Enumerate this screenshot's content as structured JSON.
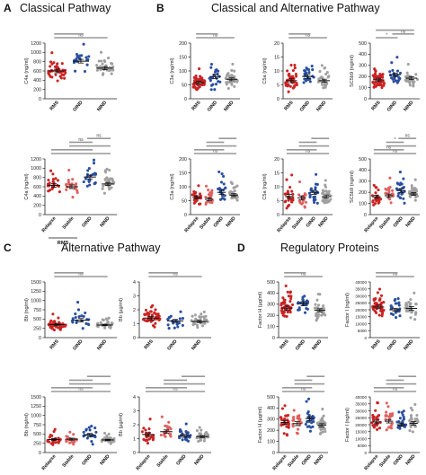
{
  "panels": {
    "A": {
      "letter": "A",
      "title": "Classical Pathway"
    },
    "B": {
      "letter": "B",
      "title": "Classical and Alternative Pathway"
    },
    "C": {
      "letter": "C",
      "title": "Alternative Pathway"
    },
    "D": {
      "letter": "D",
      "title": "Regulatory Proteins"
    }
  },
  "colors": {
    "rms": "#cc2222",
    "stable": "#e06060",
    "oind": "#2a4fa0",
    "nind": "#a0a0a0",
    "bar": "#999999",
    "axis": "#222222"
  },
  "chart_data": [
    {
      "id": "A1",
      "type": "scatter",
      "ylabel": "C4a (ng/ml)",
      "ticks": [
        0,
        200,
        400,
        600,
        800,
        1000,
        1200
      ],
      "ylim": [
        0,
        1200
      ],
      "categories": [
        "RMS",
        "OIND",
        "NIND"
      ],
      "means": [
        600,
        810,
        660
      ],
      "n": [
        45,
        22,
        32
      ],
      "spread": [
        220,
        220,
        180
      ],
      "brackets": [
        {
          "from": 0,
          "to": 2,
          "label": "ns"
        },
        {
          "from": 0,
          "to": 1,
          "label": ""
        }
      ]
    },
    {
      "id": "A2",
      "type": "scatter",
      "ylabel": "C4a (ng/ml)",
      "ticks": [
        0,
        200,
        400,
        600,
        800,
        1000,
        1200
      ],
      "ylim": [
        0,
        1200
      ],
      "categories": [
        "Relapse",
        "Stable",
        "OIND",
        "NIND"
      ],
      "means": [
        630,
        600,
        810,
        660
      ],
      "n": [
        24,
        20,
        22,
        32
      ],
      "spread": [
        220,
        220,
        220,
        180
      ],
      "brackets": [
        {
          "from": 0,
          "to": 3,
          "label": ""
        },
        {
          "from": 0,
          "to": 2,
          "label": ""
        },
        {
          "from": 1,
          "to": 3,
          "label": ""
        },
        {
          "from": 1,
          "to": 2,
          "label": "ns"
        },
        {
          "from": 2,
          "to": 3,
          "label": "ns"
        }
      ],
      "group_label": "RMS"
    },
    {
      "id": "B1",
      "type": "scatter",
      "ylabel": "C3a (ng/ml)",
      "ticks": [
        0,
        50,
        100,
        150,
        200
      ],
      "ylim": [
        0,
        200
      ],
      "categories": [
        "RMS",
        "OIND",
        "NIND"
      ],
      "means": [
        58,
        80,
        70
      ],
      "n": [
        45,
        22,
        32
      ],
      "spread": [
        30,
        40,
        28
      ],
      "brackets": [
        {
          "from": 0,
          "to": 2,
          "label": "ns"
        },
        {
          "from": 0,
          "to": 1,
          "label": ""
        }
      ]
    },
    {
      "id": "B2",
      "type": "scatter",
      "ylabel": "C5a (ng/ml)",
      "ticks": [
        0,
        5,
        10,
        15,
        20
      ],
      "ylim": [
        0,
        20
      ],
      "categories": [
        "RMS",
        "OIND",
        "NIND"
      ],
      "means": [
        6.5,
        8,
        6.5
      ],
      "n": [
        45,
        22,
        32
      ],
      "spread": [
        4,
        4,
        3
      ],
      "brackets": [
        {
          "from": 0,
          "to": 2,
          "label": "ns"
        },
        {
          "from": 0,
          "to": 1,
          "label": ""
        }
      ]
    },
    {
      "id": "B3",
      "type": "scatter",
      "ylabel": "SC5b9 (ng/ml)",
      "ticks": [
        0,
        100,
        200,
        300,
        400,
        500
      ],
      "ylim": [
        0,
        500
      ],
      "categories": [
        "RMS",
        "OIND",
        "NIND"
      ],
      "means": [
        170,
        215,
        185
      ],
      "n": [
        45,
        22,
        32
      ],
      "spread": [
        80,
        90,
        70
      ],
      "brackets": [
        {
          "from": 0,
          "to": 1,
          "label": "*"
        },
        {
          "from": 1,
          "to": 2,
          "label": "ns"
        },
        {
          "from": 0,
          "to": 2,
          "label": ""
        }
      ]
    },
    {
      "id": "B4",
      "type": "scatter",
      "ylabel": "C3a (ng/ml)",
      "ticks": [
        0,
        50,
        100,
        150,
        200
      ],
      "ylim": [
        0,
        200
      ],
      "categories": [
        "Relapse",
        "Stable",
        "OIND",
        "NIND"
      ],
      "means": [
        62,
        55,
        80,
        70
      ],
      "n": [
        24,
        20,
        22,
        32
      ],
      "spread": [
        30,
        30,
        40,
        28
      ],
      "brackets": [
        {
          "from": 0,
          "to": 3,
          "label": "ns"
        },
        {
          "from": 0,
          "to": 2,
          "label": ""
        },
        {
          "from": 1,
          "to": 3,
          "label": ""
        },
        {
          "from": 1,
          "to": 2,
          "label": ""
        },
        {
          "from": 2,
          "to": 3,
          "label": ""
        }
      ]
    },
    {
      "id": "B5",
      "type": "scatter",
      "ylabel": "C5a (ng/ml)",
      "ticks": [
        0,
        5,
        10,
        15,
        20
      ],
      "ylim": [
        0,
        20
      ],
      "categories": [
        "Relapse",
        "Stable",
        "OIND",
        "NIND"
      ],
      "means": [
        6.5,
        6,
        8,
        6.5
      ],
      "n": [
        24,
        20,
        22,
        32
      ],
      "spread": [
        4,
        4,
        4,
        3
      ],
      "brackets": [
        {
          "from": 0,
          "to": 3,
          "label": "ns"
        },
        {
          "from": 0,
          "to": 2,
          "label": ""
        },
        {
          "from": 1,
          "to": 3,
          "label": ""
        },
        {
          "from": 1,
          "to": 2,
          "label": ""
        },
        {
          "from": 2,
          "to": 3,
          "label": ""
        }
      ]
    },
    {
      "id": "B6",
      "type": "scatter",
      "ylabel": "SC5b9 (ng/ml)",
      "ticks": [
        0,
        100,
        200,
        300,
        400,
        500
      ],
      "ylim": [
        0,
        500
      ],
      "categories": [
        "Relapse",
        "Stable",
        "OIND",
        "NIND"
      ],
      "means": [
        160,
        170,
        215,
        185
      ],
      "n": [
        24,
        20,
        22,
        32
      ],
      "spread": [
        80,
        80,
        90,
        70
      ],
      "brackets": [
        {
          "from": 0,
          "to": 3,
          "label": "ns"
        },
        {
          "from": 0,
          "to": 2,
          "label": "ns"
        },
        {
          "from": 1,
          "to": 3,
          "label": ""
        },
        {
          "from": 1,
          "to": 2,
          "label": "*"
        },
        {
          "from": 2,
          "to": 3,
          "label": "ns"
        }
      ]
    },
    {
      "id": "C1",
      "type": "scatter",
      "ylabel": "Bb (ng/ml)",
      "ticks": [
        0,
        250,
        500,
        750,
        1000,
        1250,
        1500
      ],
      "ylim": [
        0,
        1500
      ],
      "categories": [
        "RMS",
        "OIND",
        "NIND"
      ],
      "means": [
        350,
        470,
        340
      ],
      "n": [
        45,
        22,
        32
      ],
      "spread": [
        150,
        250,
        100
      ],
      "brackets": [
        {
          "from": 0,
          "to": 2,
          "label": "ns"
        },
        {
          "from": 0,
          "to": 1,
          "label": ""
        }
      ]
    },
    {
      "id": "C2",
      "type": "scatter",
      "ylabel": "Bb (µg/ml)",
      "ticks": [
        0,
        1,
        2,
        3,
        4
      ],
      "ylim": [
        0,
        4
      ],
      "categories": [
        "RMS",
        "OIND",
        "NIND"
      ],
      "means": [
        1.4,
        1.2,
        1.15
      ],
      "n": [
        45,
        22,
        32
      ],
      "spread": [
        0.7,
        0.6,
        0.4
      ],
      "brackets": [
        {
          "from": 0,
          "to": 2,
          "label": "ns"
        },
        {
          "from": 0,
          "to": 1,
          "label": ""
        }
      ]
    },
    {
      "id": "C3",
      "type": "scatter",
      "ylabel": "Bb (ng/ml)",
      "ticks": [
        0,
        250,
        500,
        750,
        1000,
        1250,
        1500
      ],
      "ylim": [
        0,
        1500
      ],
      "categories": [
        "Relapse",
        "Stable",
        "OIND",
        "NIND"
      ],
      "means": [
        350,
        360,
        470,
        340
      ],
      "n": [
        24,
        20,
        22,
        32
      ],
      "spread": [
        150,
        150,
        250,
        100
      ],
      "brackets": [
        {
          "from": 0,
          "to": 3,
          "label": "ns"
        },
        {
          "from": 0,
          "to": 2,
          "label": ""
        },
        {
          "from": 1,
          "to": 3,
          "label": ""
        },
        {
          "from": 1,
          "to": 2,
          "label": ""
        },
        {
          "from": 2,
          "to": 3,
          "label": ""
        }
      ]
    },
    {
      "id": "C4",
      "type": "scatter",
      "ylabel": "Bb (µg/ml)",
      "ticks": [
        0,
        1,
        2,
        3,
        4
      ],
      "ylim": [
        0,
        4
      ],
      "categories": [
        "Relapse",
        "Stable",
        "OIND",
        "NIND"
      ],
      "means": [
        1.3,
        1.5,
        1.2,
        1.15
      ],
      "n": [
        24,
        20,
        22,
        32
      ],
      "spread": [
        0.7,
        0.7,
        0.6,
        0.4
      ],
      "brackets": [
        {
          "from": 0,
          "to": 3,
          "label": "ns"
        },
        {
          "from": 0,
          "to": 2,
          "label": ""
        },
        {
          "from": 1,
          "to": 3,
          "label": ""
        },
        {
          "from": 1,
          "to": 2,
          "label": ""
        },
        {
          "from": 2,
          "to": 3,
          "label": ""
        }
      ]
    },
    {
      "id": "D1",
      "type": "scatter",
      "ylabel": "Factor H (µg/ml)",
      "ticks": [
        0,
        100,
        200,
        300,
        400,
        500
      ],
      "ylim": [
        0,
        500
      ],
      "categories": [
        "RMS",
        "OIND",
        "NIND"
      ],
      "means": [
        265,
        305,
        245
      ],
      "n": [
        45,
        22,
        32
      ],
      "spread": [
        100,
        100,
        80
      ],
      "brackets": [
        {
          "from": 0,
          "to": 2,
          "label": "ns"
        },
        {
          "from": 0,
          "to": 1,
          "label": ""
        }
      ]
    },
    {
      "id": "D2",
      "type": "scatter",
      "ylabel": "Factor I (ng/ml)",
      "ticks": [
        0,
        5000,
        10000,
        15000,
        20000,
        25000,
        30000,
        35000,
        40000
      ],
      "ylim": [
        0,
        40000
      ],
      "categories": [
        "RMS",
        "OIND",
        "NIND"
      ],
      "means": [
        22000,
        20000,
        21000
      ],
      "n": [
        45,
        22,
        32
      ],
      "spread": [
        7000,
        6000,
        7000
      ],
      "brackets": [
        {
          "from": 0,
          "to": 2,
          "label": "ns"
        },
        {
          "from": 0,
          "to": 1,
          "label": ""
        }
      ]
    },
    {
      "id": "D3",
      "type": "scatter",
      "ylabel": "Factor H (µg/ml)",
      "ticks": [
        0,
        100,
        200,
        300,
        400,
        500
      ],
      "ylim": [
        0,
        500
      ],
      "categories": [
        "Relapse",
        "Stable",
        "OIND",
        "NIND"
      ],
      "means": [
        270,
        260,
        305,
        245
      ],
      "n": [
        24,
        20,
        22,
        32
      ],
      "spread": [
        100,
        100,
        100,
        80
      ],
      "brackets": [
        {
          "from": 0,
          "to": 3,
          "label": "ns"
        },
        {
          "from": 0,
          "to": 2,
          "label": ""
        },
        {
          "from": 1,
          "to": 3,
          "label": ""
        },
        {
          "from": 1,
          "to": 2,
          "label": ""
        },
        {
          "from": 2,
          "to": 3,
          "label": ""
        }
      ]
    },
    {
      "id": "D4",
      "type": "scatter",
      "ylabel": "Factor I (ng/ml)",
      "ticks": [
        0,
        5000,
        10000,
        15000,
        20000,
        25000,
        30000,
        35000,
        40000
      ],
      "ylim": [
        0,
        40000
      ],
      "categories": [
        "Relapse",
        "Stable",
        "OIND",
        "NIND"
      ],
      "means": [
        22000,
        22500,
        20000,
        21000
      ],
      "n": [
        24,
        20,
        22,
        32
      ],
      "spread": [
        7000,
        7000,
        6000,
        7000
      ],
      "brackets": [
        {
          "from": 0,
          "to": 3,
          "label": "ns"
        },
        {
          "from": 0,
          "to": 2,
          "label": ""
        },
        {
          "from": 1,
          "to": 3,
          "label": ""
        },
        {
          "from": 1,
          "to": 2,
          "label": ""
        },
        {
          "from": 2,
          "to": 3,
          "label": ""
        }
      ]
    }
  ]
}
